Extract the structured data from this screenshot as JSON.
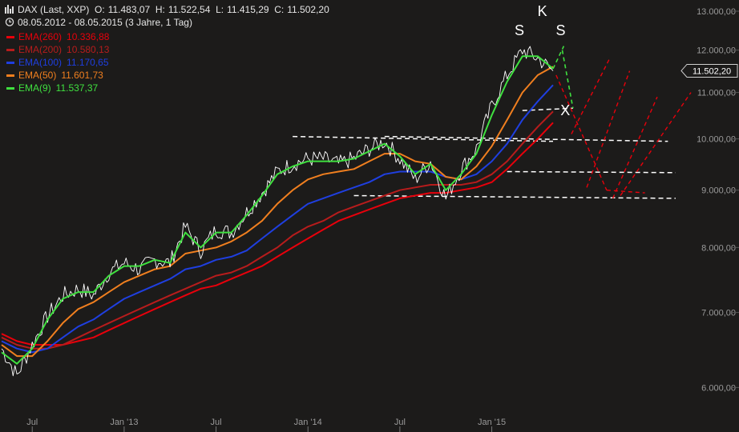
{
  "header": {
    "instrument": "DAX (Last, XXP)",
    "open_label": "O:",
    "open": "11.483,07",
    "high_label": "H:",
    "high": "11.522,54",
    "low_label": "L:",
    "low": "11.415,29",
    "close_label": "C:",
    "close": "11.502,20",
    "range": "08.05.2012 - 08.05.2015 (3 Jahre, 1 Tag)"
  },
  "legend": [
    {
      "name": "EMA(260)",
      "value": "10.336,88",
      "color": "#e8000b"
    },
    {
      "name": "EMA(200)",
      "value": "10.580,13",
      "color": "#b71c1c"
    },
    {
      "name": "EMA(100)",
      "value": "11.170,65",
      "color": "#1f3fe0"
    },
    {
      "name": "EMA(50)",
      "value": "11.601,73",
      "color": "#f07f1f"
    },
    {
      "name": "EMA(9)",
      "value": "11.537,37",
      "color": "#3fe03f"
    }
  ],
  "last_price_label": "11.502,20",
  "annotations": [
    "S",
    "K",
    "S",
    "X"
  ],
  "colors": {
    "background": "#1c1b1a",
    "price": "#ffffff",
    "support": "#ffffff",
    "projection": "#e8000b",
    "ema9": "#3fe03f"
  },
  "chart_data": {
    "type": "line",
    "scale": "log",
    "ylim": [
      5800,
      13000
    ],
    "x_ticks": [
      "Jul",
      "Jan '13",
      "Jul",
      "Jan '14",
      "Jul",
      "Jan '15"
    ],
    "y_ticks": [
      {
        "value": 6000,
        "label": "6.000,00"
      },
      {
        "value": 7000,
        "label": "7.000,00"
      },
      {
        "value": 8000,
        "label": "8.000,00"
      },
      {
        "value": 9000,
        "label": "9.000,00"
      },
      {
        "value": 10000,
        "label": "10.000,00"
      },
      {
        "value": 11000,
        "label": "11.000,00"
      },
      {
        "value": 12000,
        "label": "12.000,00"
      },
      {
        "value": 13000,
        "label": "13.000,00"
      }
    ],
    "x": [
      "2012-05",
      "2012-06",
      "2012-07",
      "2012-08",
      "2012-09",
      "2012-10",
      "2012-11",
      "2012-12",
      "2013-01",
      "2013-02",
      "2013-03",
      "2013-04",
      "2013-05",
      "2013-06",
      "2013-07",
      "2013-08",
      "2013-09",
      "2013-10",
      "2013-11",
      "2013-12",
      "2014-01",
      "2014-02",
      "2014-03",
      "2014-04",
      "2014-05",
      "2014-06",
      "2014-07",
      "2014-08",
      "2014-09",
      "2014-10",
      "2014-11",
      "2014-12",
      "2015-01",
      "2015-02",
      "2015-03",
      "2015-04",
      "2015-05"
    ],
    "series": [
      {
        "name": "DAX",
        "color": "#ffffff",
        "values": [
          6500,
          6150,
          6550,
          6950,
          7250,
          7350,
          7250,
          7600,
          7750,
          7650,
          7800,
          7750,
          8350,
          7950,
          8300,
          8250,
          8600,
          8950,
          9350,
          9500,
          9600,
          9600,
          9500,
          9600,
          9800,
          9950,
          9600,
          9200,
          9550,
          8850,
          9400,
          9800,
          10700,
          11400,
          12000,
          11800,
          11500
        ]
      },
      {
        "name": "EMA(9)",
        "color": "#3fe03f",
        "values": [
          6450,
          6300,
          6500,
          6900,
          7200,
          7300,
          7300,
          7550,
          7700,
          7700,
          7800,
          7750,
          8250,
          8000,
          8250,
          8250,
          8550,
          8900,
          9300,
          9450,
          9550,
          9550,
          9550,
          9600,
          9750,
          9900,
          9650,
          9300,
          9500,
          9000,
          9300,
          9700,
          10500,
          11250,
          11850,
          11850,
          11550
        ]
      },
      {
        "name": "EMA(50)",
        "color": "#f07f1f",
        "values": [
          6550,
          6400,
          6400,
          6600,
          6850,
          7050,
          7150,
          7300,
          7450,
          7550,
          7650,
          7700,
          7900,
          7950,
          8000,
          8100,
          8250,
          8450,
          8750,
          9000,
          9200,
          9300,
          9350,
          9400,
          9550,
          9700,
          9700,
          9550,
          9500,
          9250,
          9200,
          9450,
          9850,
          10400,
          11000,
          11400,
          11600
        ]
      },
      {
        "name": "EMA(100)",
        "color": "#1f3fe0",
        "values": [
          6600,
          6500,
          6450,
          6500,
          6650,
          6800,
          6900,
          7050,
          7200,
          7300,
          7400,
          7500,
          7650,
          7700,
          7800,
          7850,
          7950,
          8150,
          8350,
          8550,
          8750,
          8850,
          8950,
          9050,
          9150,
          9300,
          9350,
          9350,
          9350,
          9250,
          9200,
          9300,
          9550,
          9900,
          10400,
          10800,
          11170
        ]
      },
      {
        "name": "EMA(200)",
        "color": "#b71c1c",
        "values": [
          6650,
          6550,
          6500,
          6500,
          6550,
          6650,
          6750,
          6850,
          6950,
          7050,
          7150,
          7250,
          7350,
          7450,
          7550,
          7600,
          7700,
          7850,
          8000,
          8200,
          8350,
          8450,
          8600,
          8700,
          8800,
          8900,
          9000,
          9050,
          9100,
          9100,
          9100,
          9150,
          9300,
          9550,
          9900,
          10250,
          10580
        ]
      },
      {
        "name": "EMA(260)",
        "color": "#e8000b",
        "values": [
          6700,
          6600,
          6550,
          6550,
          6550,
          6600,
          6650,
          6750,
          6850,
          6950,
          7050,
          7150,
          7250,
          7350,
          7400,
          7500,
          7600,
          7700,
          7850,
          8000,
          8150,
          8300,
          8450,
          8550,
          8650,
          8750,
          8850,
          8900,
          8950,
          8950,
          9000,
          9050,
          9150,
          9400,
          9700,
          10000,
          10340
        ]
      }
    ]
  }
}
